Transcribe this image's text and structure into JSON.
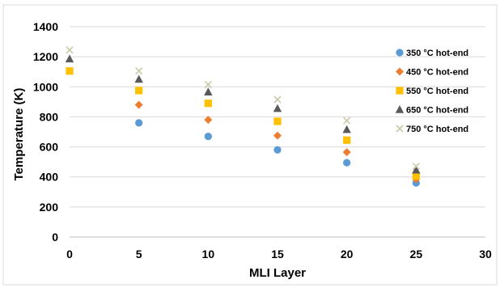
{
  "chart_data": {
    "type": "scatter",
    "title": "",
    "xlabel": "MLI Layer",
    "ylabel": "Temperature (K)",
    "xlim": [
      0,
      30
    ],
    "ylim": [
      0,
      1400
    ],
    "xticks": [
      0,
      5,
      10,
      15,
      20,
      25,
      30
    ],
    "yticks": [
      0,
      200,
      400,
      600,
      800,
      1000,
      1200,
      1400
    ],
    "xtick_labels": [
      "0",
      "5",
      "10",
      "15",
      "20",
      "25",
      "30"
    ],
    "ytick_labels": [
      "0",
      "200",
      "400",
      "600",
      "800",
      "1000",
      "1200",
      "1400"
    ],
    "grid": "horizontal",
    "legend_position": "right",
    "x": [
      0,
      5,
      10,
      15,
      20,
      25
    ],
    "series": [
      {
        "name": "350 °C hot-end",
        "marker": "circle",
        "color": "#5B9BD5",
        "values": [
          null,
          760,
          670,
          580,
          495,
          360
        ]
      },
      {
        "name": "450 °C hot-end",
        "marker": "diamond",
        "color": "#ED7D31",
        "values": [
          null,
          880,
          780,
          675,
          565,
          385
        ]
      },
      {
        "name": "550 °C hot-end",
        "marker": "square",
        "color": "#FFC000",
        "values": [
          1105,
          975,
          890,
          770,
          645,
          405
        ]
      },
      {
        "name": "650 °C hot-end",
        "marker": "triangle",
        "color": "#595959",
        "values": [
          1185,
          1050,
          965,
          855,
          715,
          445
        ]
      },
      {
        "name": "750 °C hot-end",
        "marker": "x",
        "color": "#C9C9A8",
        "values": [
          1245,
          1105,
          1015,
          915,
          775,
          470
        ]
      }
    ]
  }
}
